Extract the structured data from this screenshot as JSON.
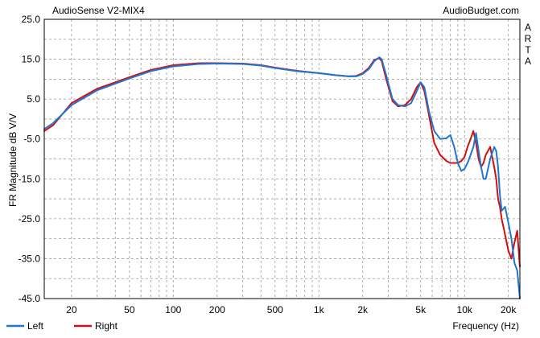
{
  "header": {
    "title": "AudioSense V2-MIX4",
    "site": "AudioBudget.com",
    "side_letters": [
      "A",
      "R",
      "T",
      "A"
    ]
  },
  "chart_data": {
    "type": "line",
    "title": "AudioSense V2-MIX4",
    "xlabel": "Frequency (Hz)",
    "ylabel": "FR Magnitude dB V/V",
    "x_scale": "log",
    "xlim": [
      13,
      24000
    ],
    "ylim": [
      -45,
      25
    ],
    "grid": true,
    "legend_position": "bottom-left",
    "y_ticks": [
      25.0,
      15.0,
      5.0,
      -5.0,
      -15.0,
      -25.0,
      -35.0,
      -45.0
    ],
    "y_tick_labels": [
      "25.0",
      "15.0",
      "5.0",
      "-5.0",
      "-15.0",
      "-25.0",
      "-35.0",
      "-45.0"
    ],
    "x_ticks": [
      20,
      50,
      100,
      200,
      500,
      1000,
      2000,
      5000,
      10000,
      20000
    ],
    "x_tick_labels": [
      "20",
      "50",
      "100",
      "200",
      "500",
      "1k",
      "2k",
      "5k",
      "10k",
      "20k"
    ],
    "series": [
      {
        "name": "Left",
        "color": "#1f77d0",
        "x": [
          13,
          15,
          20,
          30,
          50,
          70,
          100,
          150,
          200,
          300,
          400,
          500,
          700,
          1000,
          1300,
          1600,
          1800,
          2000,
          2200,
          2400,
          2600,
          2700,
          2900,
          3200,
          3500,
          3900,
          4300,
          4700,
          5000,
          5300,
          5700,
          6200,
          6800,
          7500,
          8000,
          8500,
          9000,
          9500,
          10000,
          10500,
          11000,
          11500,
          12000,
          12500,
          13000,
          13500,
          14000,
          15000,
          16000,
          16500,
          17000,
          17500,
          18000,
          19000,
          20000,
          21000,
          22000,
          23000,
          24000
        ],
        "y": [
          -2.5,
          -1,
          3.5,
          7.2,
          10.2,
          12,
          13.2,
          13.8,
          13.9,
          13.8,
          13.4,
          12.8,
          12,
          11.5,
          11,
          10.7,
          10.7,
          11.3,
          12.5,
          14.5,
          15.5,
          15,
          11,
          5,
          3.5,
          3.2,
          4,
          7,
          9.2,
          8,
          2,
          -3,
          -5,
          -4.8,
          -4,
          -7,
          -11,
          -13,
          -12.5,
          -11,
          -9,
          -7,
          -3.5,
          -8,
          -12,
          -15,
          -15,
          -10,
          -7,
          -8,
          -12,
          -19,
          -23,
          -22,
          -26,
          -30,
          -36,
          -38,
          -45
        ]
      },
      {
        "name": "Right",
        "color": "#d01010",
        "x": [
          13,
          15,
          20,
          30,
          50,
          70,
          100,
          150,
          200,
          300,
          400,
          500,
          700,
          1000,
          1300,
          1600,
          1800,
          2000,
          2200,
          2400,
          2600,
          2700,
          2900,
          3200,
          3500,
          3900,
          4300,
          4700,
          5000,
          5300,
          5700,
          6200,
          6800,
          7500,
          8000,
          8500,
          9000,
          9500,
          10000,
          10500,
          11000,
          11500,
          12000,
          12500,
          13000,
          13500,
          14000,
          15000,
          16000,
          16500,
          17000,
          17500,
          18000,
          19000,
          20000,
          21000,
          22000,
          23000,
          24000
        ],
        "y": [
          -3,
          -1.5,
          4,
          7.6,
          10.5,
          12.3,
          13.5,
          14,
          14,
          13.9,
          13.5,
          12.9,
          12.1,
          11.5,
          11,
          10.7,
          10.8,
          11.5,
          12.8,
          14.8,
          15.3,
          14.5,
          10,
          4.5,
          3.2,
          3.5,
          5,
          8,
          9.2,
          7,
          1,
          -6,
          -9,
          -10.5,
          -11,
          -11,
          -11,
          -10.5,
          -9.5,
          -7,
          -5,
          -3,
          -6,
          -10,
          -12,
          -11,
          -9,
          -7,
          -12,
          -15,
          -20,
          -22,
          -25,
          -29,
          -33,
          -35,
          -31,
          -28,
          -37
        ]
      }
    ]
  }
}
